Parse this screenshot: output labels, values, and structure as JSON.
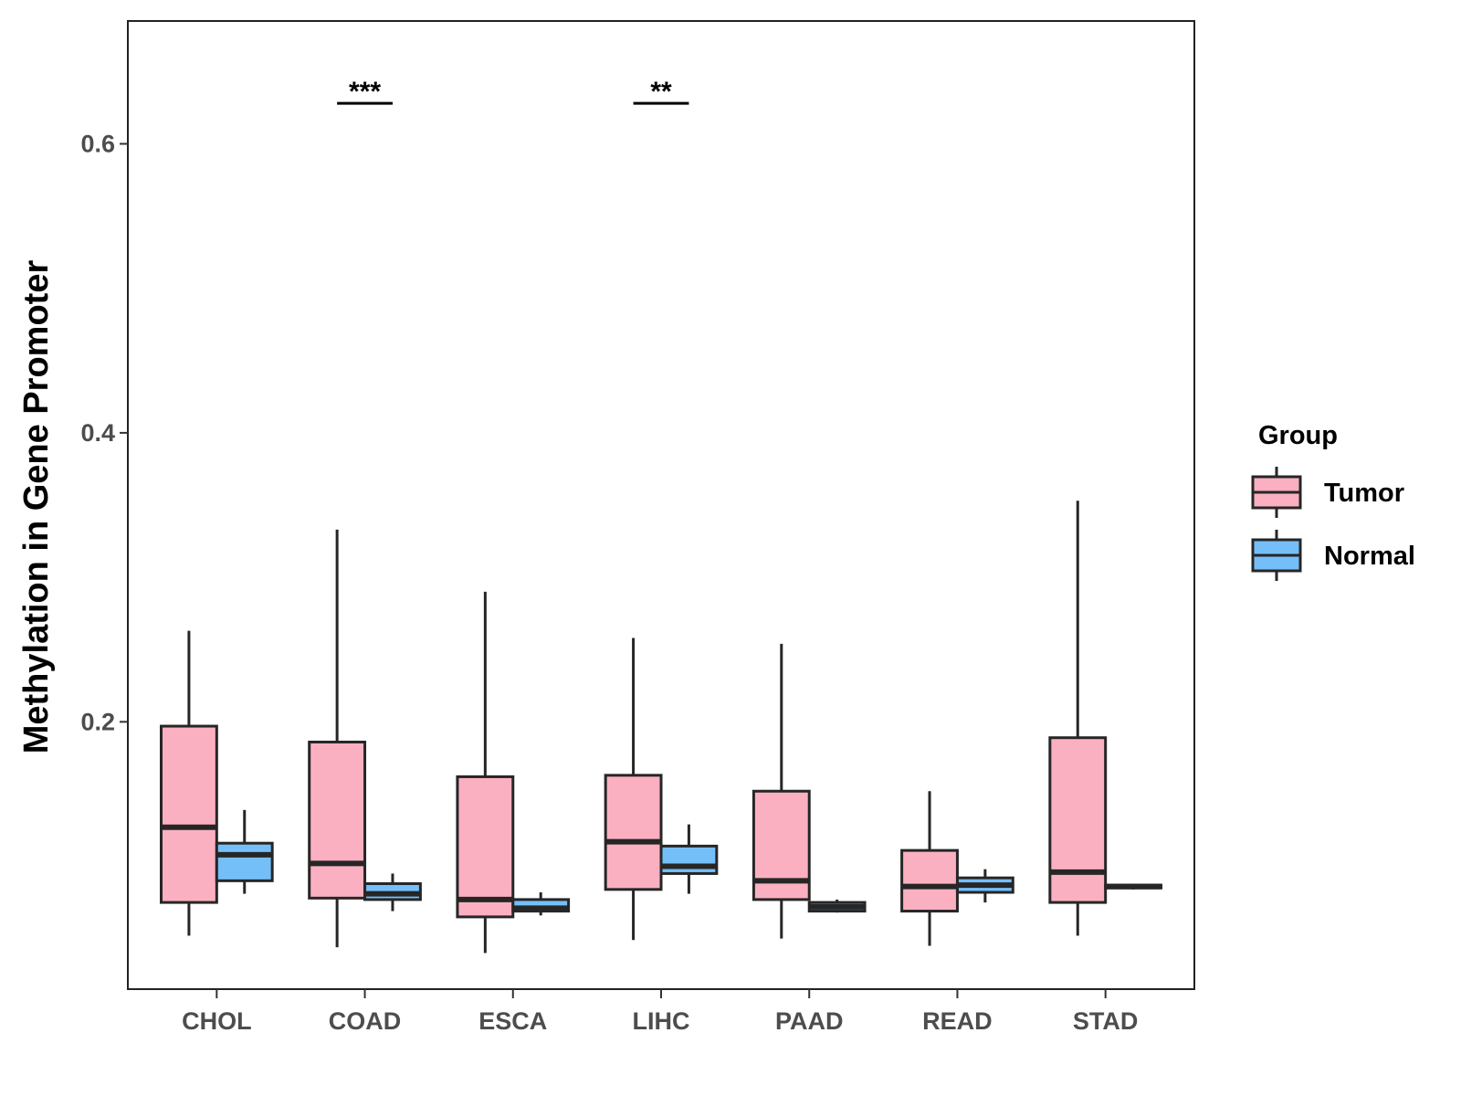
{
  "chart_data": {
    "type": "boxplot",
    "title": "",
    "xlabel": "",
    "ylabel": "Methylation in Gene Promoter",
    "ylim": [
      0.015,
      0.685
    ],
    "yticks": [
      0.2,
      0.4,
      0.6
    ],
    "ytick_labels": [
      "0.2",
      "0.4",
      "0.6"
    ],
    "categories": [
      "CHOL",
      "COAD",
      "ESCA",
      "LIHC",
      "PAAD",
      "READ",
      "STAD"
    ],
    "legend": {
      "title": "Group",
      "position": "right",
      "entries": [
        {
          "name": "Tumor",
          "color": "#fbb0c1"
        },
        {
          "name": "Normal",
          "color": "#75bff9"
        }
      ]
    },
    "series": [
      {
        "name": "Tumor",
        "color": "#fbb0c1",
        "boxes": [
          {
            "whisker_low": 0.052,
            "q1": 0.075,
            "median": 0.127,
            "q3": 0.197,
            "whisker_high": 0.263
          },
          {
            "whisker_low": 0.044,
            "q1": 0.078,
            "median": 0.102,
            "q3": 0.186,
            "whisker_high": 0.333
          },
          {
            "whisker_low": 0.04,
            "q1": 0.065,
            "median": 0.077,
            "q3": 0.162,
            "whisker_high": 0.29
          },
          {
            "whisker_low": 0.049,
            "q1": 0.084,
            "median": 0.117,
            "q3": 0.163,
            "whisker_high": 0.258
          },
          {
            "whisker_low": 0.05,
            "q1": 0.077,
            "median": 0.09,
            "q3": 0.152,
            "whisker_high": 0.254
          },
          {
            "whisker_low": 0.045,
            "q1": 0.069,
            "median": 0.086,
            "q3": 0.111,
            "whisker_high": 0.152
          },
          {
            "whisker_low": 0.052,
            "q1": 0.075,
            "median": 0.096,
            "q3": 0.189,
            "whisker_high": 0.353
          }
        ]
      },
      {
        "name": "Normal",
        "color": "#75bff9",
        "boxes": [
          {
            "whisker_low": 0.081,
            "q1": 0.09,
            "median": 0.108,
            "q3": 0.116,
            "whisker_high": 0.139
          },
          {
            "whisker_low": 0.069,
            "q1": 0.077,
            "median": 0.081,
            "q3": 0.088,
            "whisker_high": 0.095
          },
          {
            "whisker_low": 0.066,
            "q1": 0.069,
            "median": 0.071,
            "q3": 0.077,
            "whisker_high": 0.082
          },
          {
            "whisker_low": 0.081,
            "q1": 0.095,
            "median": 0.1,
            "q3": 0.114,
            "whisker_high": 0.129
          },
          {
            "whisker_low": 0.068,
            "q1": 0.069,
            "median": 0.072,
            "q3": 0.075,
            "whisker_high": 0.077
          },
          {
            "whisker_low": 0.075,
            "q1": 0.082,
            "median": 0.087,
            "q3": 0.092,
            "whisker_high": 0.098
          },
          {
            "whisker_low": 0.084,
            "q1": 0.085,
            "median": 0.086,
            "q3": 0.087,
            "whisker_high": 0.088
          }
        ]
      }
    ],
    "significance": [
      {
        "category": "COAD",
        "label": "***",
        "y": 0.628
      },
      {
        "category": "LIHC",
        "label": "**",
        "y": 0.628
      }
    ]
  }
}
